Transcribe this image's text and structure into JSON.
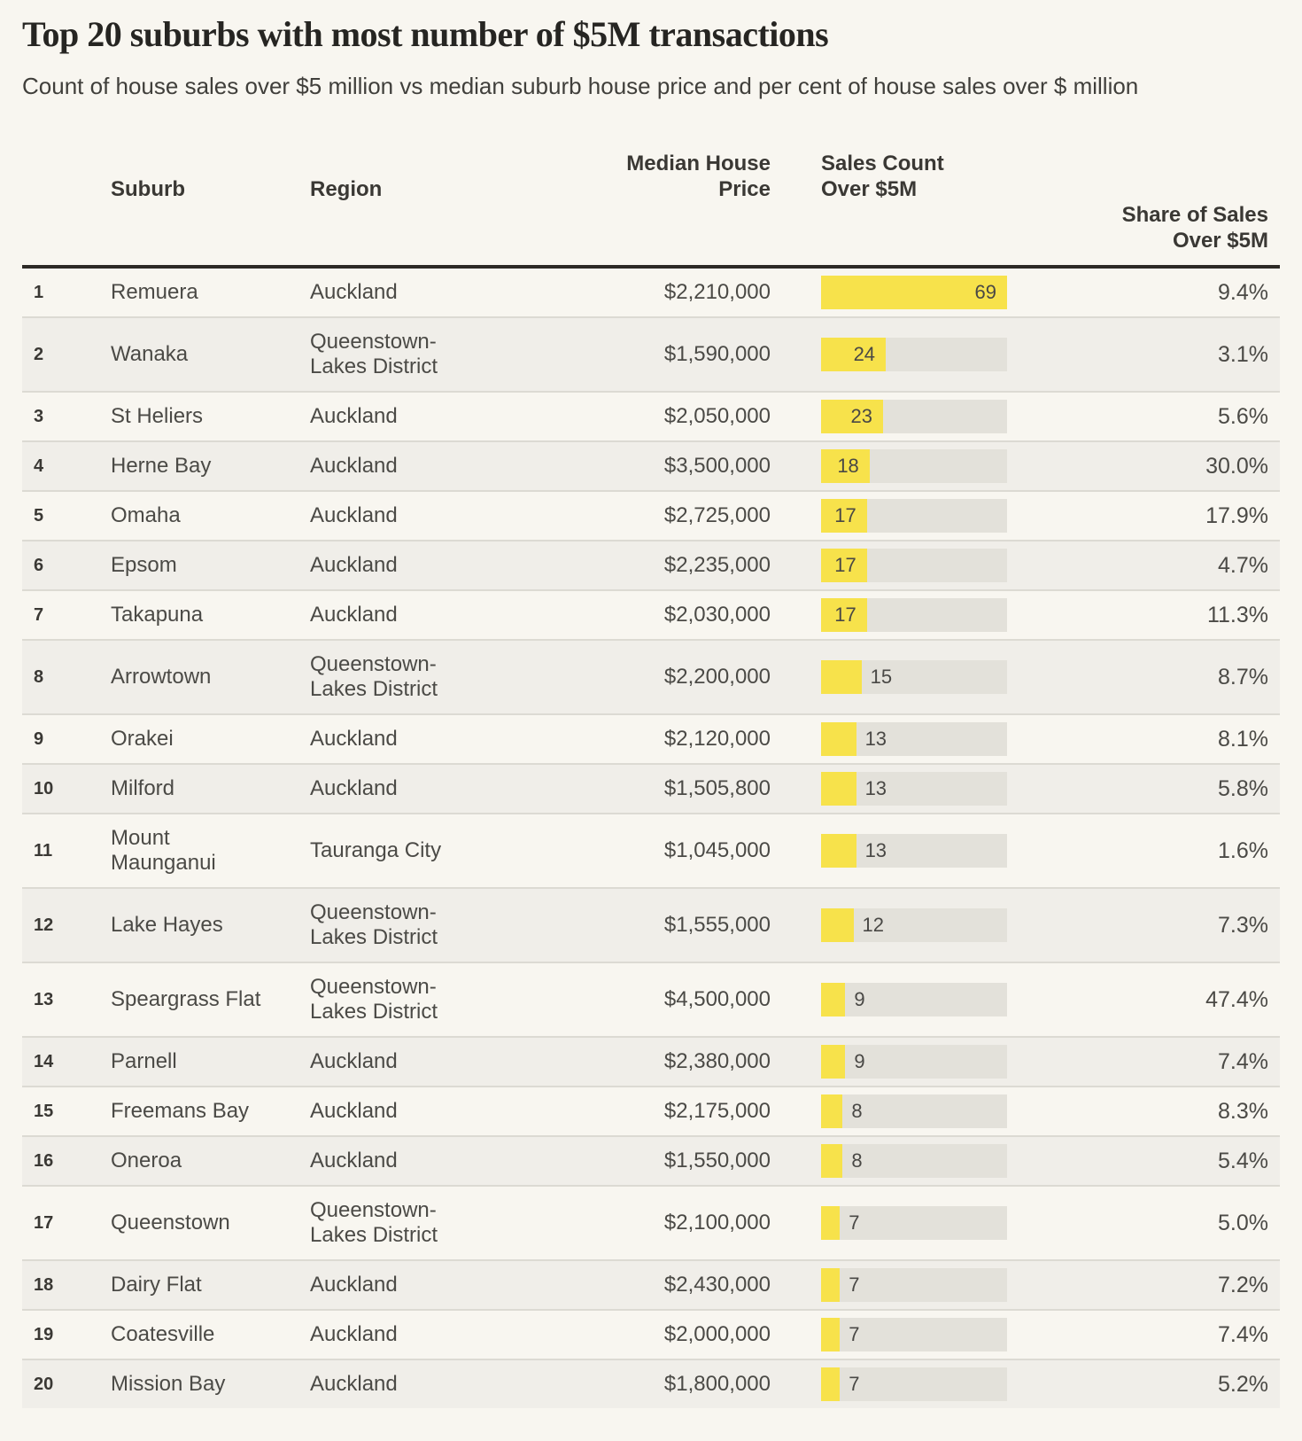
{
  "title": "Top 20 suburbs with most number of $5M transactions",
  "subtitle": "Count of house sales over $5 million vs median suburb house price and per cent of house sales over $ million",
  "columns": {
    "suburb": "Suburb",
    "region": "Region",
    "price": "Median House Price",
    "sales": "Sales Count Over $5M",
    "share": "Share of Sales Over $5M"
  },
  "chart_data": {
    "type": "table",
    "title": "Top 20 suburbs with most number of $5M transactions",
    "subtitle": "Count of house sales over $5 million vs median suburb house price and per cent of house sales over $ million",
    "bar_column": "Sales Count Over $5M",
    "bar_max": 69,
    "categories": [
      "Remuera",
      "Wanaka",
      "St Heliers",
      "Herne Bay",
      "Omaha",
      "Epsom",
      "Takapuna",
      "Arrowtown",
      "Orakei",
      "Milford",
      "Mount Maunganui",
      "Lake Hayes",
      "Speargrass Flat",
      "Parnell",
      "Freemans Bay",
      "Oneroa",
      "Queenstown",
      "Dairy Flat",
      "Coatesville",
      "Mission Bay"
    ],
    "values": [
      69,
      24,
      23,
      18,
      17,
      17,
      17,
      15,
      13,
      13,
      13,
      12,
      9,
      9,
      8,
      8,
      7,
      7,
      7,
      7
    ],
    "rows": [
      {
        "rank": "1",
        "suburb": "Remuera",
        "region": "Auckland",
        "price": "$2,210,000",
        "count": 69,
        "share": "9.4%"
      },
      {
        "rank": "2",
        "suburb": "Wanaka",
        "region": "Queenstown-Lakes District",
        "price": "$1,590,000",
        "count": 24,
        "share": "3.1%"
      },
      {
        "rank": "3",
        "suburb": "St Heliers",
        "region": "Auckland",
        "price": "$2,050,000",
        "count": 23,
        "share": "5.6%"
      },
      {
        "rank": "4",
        "suburb": "Herne Bay",
        "region": "Auckland",
        "price": "$3,500,000",
        "count": 18,
        "share": "30.0%"
      },
      {
        "rank": "5",
        "suburb": "Omaha",
        "region": "Auckland",
        "price": "$2,725,000",
        "count": 17,
        "share": "17.9%"
      },
      {
        "rank": "6",
        "suburb": "Epsom",
        "region": "Auckland",
        "price": "$2,235,000",
        "count": 17,
        "share": "4.7%"
      },
      {
        "rank": "7",
        "suburb": "Takapuna",
        "region": "Auckland",
        "price": "$2,030,000",
        "count": 17,
        "share": "11.3%"
      },
      {
        "rank": "8",
        "suburb": "Arrowtown",
        "region": "Queenstown-Lakes District",
        "price": "$2,200,000",
        "count": 15,
        "share": "8.7%"
      },
      {
        "rank": "9",
        "suburb": "Orakei",
        "region": "Auckland",
        "price": "$2,120,000",
        "count": 13,
        "share": "8.1%"
      },
      {
        "rank": "10",
        "suburb": "Milford",
        "region": "Auckland",
        "price": "$1,505,800",
        "count": 13,
        "share": "5.8%"
      },
      {
        "rank": "11",
        "suburb": "Mount Maunganui",
        "region": "Tauranga City",
        "price": "$1,045,000",
        "count": 13,
        "share": "1.6%"
      },
      {
        "rank": "12",
        "suburb": "Lake Hayes",
        "region": "Queenstown-Lakes District",
        "price": "$1,555,000",
        "count": 12,
        "share": "7.3%"
      },
      {
        "rank": "13",
        "suburb": "Speargrass Flat",
        "region": "Queenstown-Lakes District",
        "price": "$4,500,000",
        "count": 9,
        "share": "47.4%"
      },
      {
        "rank": "14",
        "suburb": "Parnell",
        "region": "Auckland",
        "price": "$2,380,000",
        "count": 9,
        "share": "7.4%"
      },
      {
        "rank": "15",
        "suburb": "Freemans Bay",
        "region": "Auckland",
        "price": "$2,175,000",
        "count": 8,
        "share": "8.3%"
      },
      {
        "rank": "16",
        "suburb": "Oneroa",
        "region": "Auckland",
        "price": "$1,550,000",
        "count": 8,
        "share": "5.4%"
      },
      {
        "rank": "17",
        "suburb": "Queenstown",
        "region": "Queenstown-Lakes District",
        "price": "$2,100,000",
        "count": 7,
        "share": "5.0%"
      },
      {
        "rank": "18",
        "suburb": "Dairy Flat",
        "region": "Auckland",
        "price": "$2,430,000",
        "count": 7,
        "share": "7.2%"
      },
      {
        "rank": "19",
        "suburb": "Coatesville",
        "region": "Auckland",
        "price": "$2,000,000",
        "count": 7,
        "share": "7.4%"
      },
      {
        "rank": "20",
        "suburb": "Mission Bay",
        "region": "Auckland",
        "price": "$1,800,000",
        "count": 7,
        "share": "5.2%"
      }
    ],
    "colors": {
      "bar_fill": "#f7e24b",
      "bar_track": "#e3e1da",
      "row_alt_background": "#f0eee9",
      "page_background": "#f8f6f0",
      "header_rule": "#2d2a26"
    },
    "layout": {
      "legend": false,
      "grid": false,
      "bar_direction": "horizontal"
    }
  }
}
